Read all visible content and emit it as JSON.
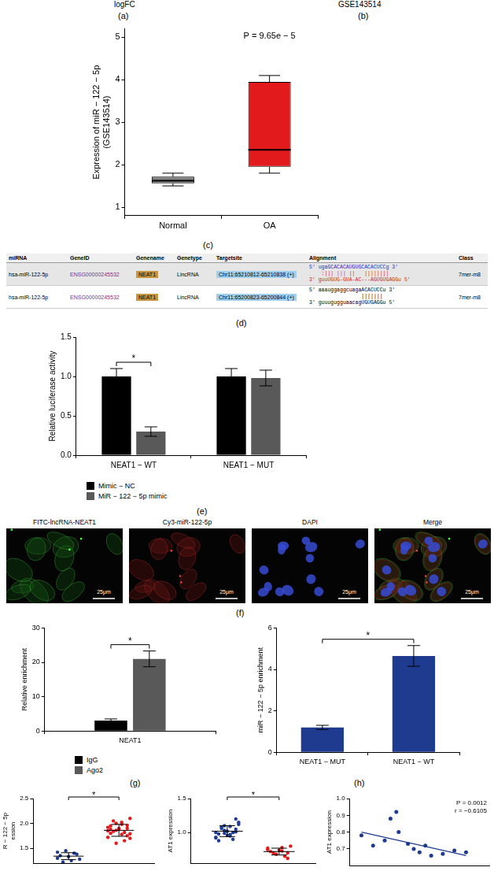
{
  "header": {
    "a": {
      "axis_label": "logFC",
      "panel_label": "(a)"
    },
    "b": {
      "title": "GSE143514",
      "panel_label": "(b)"
    }
  },
  "chart_data": [
    {
      "panel_label": "(c)",
      "type": "box",
      "y_label": [
        "Expression of miR − 122 − 5p",
        "(GSE143514)"
      ],
      "categories": [
        "Normal",
        "OA"
      ],
      "boxes": [
        {
          "min": 1.5,
          "q1": 1.56,
          "median": 1.62,
          "q3": 1.72,
          "max": 1.8
        },
        {
          "min": 1.8,
          "q1": 1.95,
          "median": 2.35,
          "q3": 3.95,
          "max": 4.1
        }
      ],
      "colors": [
        "#808080",
        "#e31a1c"
      ],
      "annotations": [
        {
          "text": "P = 9.65e − 5"
        }
      ],
      "ylim": [
        0.8,
        5.2
      ],
      "yticks": [
        1,
        2,
        3,
        4,
        5
      ],
      "grid": false
    },
    {
      "panel_label": "(e)",
      "type": "bar",
      "y_label": "Relative luciferase activity",
      "categories": [
        "NEAT1 − WT",
        "NEAT1 − MUT"
      ],
      "series": [
        {
          "name": "Mimic − NC",
          "color": "#000000",
          "values": [
            1.0,
            1.0
          ],
          "errors": [
            0.1,
            0.1
          ]
        },
        {
          "name": "MiR − 122 − 5p mimic",
          "color": "#595959",
          "values": [
            0.3,
            0.98
          ],
          "errors": [
            0.06,
            0.1
          ]
        }
      ],
      "ylim": [
        0,
        1.5
      ],
      "yticks": [
        {
          "value": 0,
          "label": "0.0"
        },
        0.5,
        {
          "value": 1,
          "label": "1.0"
        },
        1.5
      ],
      "grid": false,
      "legend": "bottom",
      "annotations": [
        {
          "text": "*",
          "category": "NEAT1 − WT"
        }
      ]
    },
    {
      "panel_label": "(g)",
      "type": "bar",
      "y_label": "Relative enrichment",
      "categories": [
        "NEAT1"
      ],
      "series": [
        {
          "name": "IgG",
          "color": "#000000",
          "values": [
            3.0
          ],
          "errors": [
            0.5
          ]
        },
        {
          "name": "Ago2",
          "color": "#595959",
          "values": [
            21.0
          ],
          "errors": [
            2.3
          ]
        }
      ],
      "ylim": [
        0,
        30
      ],
      "yticks": [
        0,
        10,
        20,
        30
      ],
      "grid": false,
      "legend": "bottom",
      "annotations": [
        {
          "text": "*",
          "category": "NEAT1"
        }
      ]
    },
    {
      "panel_label": "(h)",
      "type": "bar",
      "y_label": "miR − 122 − 5p enrichment",
      "categories": [
        "NEAT1 − MUT",
        "NEAT1 − WT"
      ],
      "values": [
        1.2,
        4.65
      ],
      "errors": [
        0.1,
        0.5
      ],
      "color": "#1f3b8f",
      "ylim": [
        0,
        6
      ],
      "yticks": [
        0,
        2,
        4,
        6
      ],
      "grid": false,
      "annotations": [
        {
          "text": "*",
          "between": [
            "NEAT1 − MUT",
            "NEAT1 − WT"
          ]
        }
      ]
    },
    {
      "type": "strip",
      "y_label": [
        "R − 122 − 5p",
        "ession"
      ],
      "series": [
        {
          "color": "#1f3b8f",
          "values": [
            1.3,
            1.38,
            1.25,
            1.45,
            1.35,
            1.28,
            1.4,
            1.33,
            1.22,
            1.42
          ],
          "mean": 1.34,
          "sd": 0.07
        },
        {
          "color": "#e31a1c",
          "values": [
            1.85,
            1.9,
            1.78,
            2.0,
            1.95,
            1.7,
            1.82,
            1.88,
            2.05,
            1.92,
            1.75,
            1.98,
            1.86,
            1.8,
            2.1,
            1.65,
            1.9,
            1.84,
            1.72,
            1.96,
            2.02,
            1.6,
            1.88,
            1.79
          ],
          "mean": 1.86,
          "sd": 0.12
        }
      ],
      "ylim": [
        1.2,
        2.5
      ],
      "yticks": [
        1.5,
        {
          "value": 2,
          "label": "2.0"
        },
        2.5
      ],
      "grid": false,
      "tick_labels": "y",
      "annotations": [
        {
          "text": "*"
        }
      ]
    },
    {
      "type": "strip",
      "y_label": "AT1 expression",
      "series": [
        {
          "color": "#1f3b8f",
          "values": [
            1.0,
            1.05,
            0.95,
            1.1,
            0.98,
            1.15,
            0.9,
            1.02,
            1.08,
            0.93,
            1.2,
            0.97,
            1.03,
            0.88,
            1.12,
            1.0,
            0.96,
            1.06,
            0.92,
            1.01,
            1.09,
            0.99
          ],
          "mean": 1.02,
          "sd": 0.08
        },
        {
          "color": "#e31a1c",
          "values": [
            0.75,
            0.7,
            0.78,
            0.68,
            0.72,
            0.8,
            0.65,
            0.74,
            0.7,
            0.77,
            0.62,
            0.73
          ],
          "mean": 0.72,
          "sd": 0.05
        }
      ],
      "ylim": [
        0.55,
        1.5
      ],
      "yticks": [
        {
          "value": 1,
          "label": "1.0"
        },
        1.5
      ],
      "grid": false,
      "tick_labels": "y",
      "annotations": [
        {
          "text": "*"
        }
      ]
    },
    {
      "type": "scatter",
      "y_label": "AT1 expression",
      "color": "#1f3b8f",
      "x": [
        1.3,
        1.4,
        1.5,
        1.55,
        1.6,
        1.62,
        1.7,
        1.75,
        1.8,
        1.85,
        1.9,
        2.0,
        2.1,
        2.2
      ],
      "y": [
        0.78,
        0.72,
        0.75,
        0.88,
        0.92,
        0.8,
        0.73,
        0.7,
        0.68,
        0.72,
        0.66,
        0.67,
        0.69,
        0.68
      ],
      "trend_line": {
        "x": [
          1.3,
          2.2
        ],
        "y": [
          0.8,
          0.66
        ]
      },
      "xlim": [
        1.2,
        2.4
      ],
      "xticks": [],
      "ylim": [
        0.6,
        1.0
      ],
      "yticks": [
        0.7,
        0.8,
        0.9,
        {
          "value": 1,
          "label": "1.0"
        }
      ],
      "grid": false,
      "tick_labels": "y",
      "annotations": [
        {
          "text": "P = 0.0012"
        },
        {
          "text": "r = −0.6105"
        }
      ]
    }
  ],
  "table": {
    "panel_label": "(d)",
    "header": [
      "miRNA",
      "GeneID",
      "Genename",
      "Genetype",
      "Targetsite",
      "Alignment",
      "Class"
    ],
    "rows": [
      [
        "hsa-miR-122-5p",
        "ENSG00000245532",
        "NEAT1",
        "LincRNA",
        "Chr11:65210812-65210838 (+)",
        {
          "target": "5' ugaGCACACAUGUGCACACUCCg 3'",
          "pairing": "    :||| ||| ||   ||||||||",
          "mirna": "3' guuUGUG-GUA-AC---AGUGUGAGGu 5'"
        },
        "7mer-m8"
      ],
      [
        "hsa-miR-122-5p",
        "ENSG00000245532",
        "NEAT1",
        "LincRNA",
        "Chr11:65200823-65200844 (+)",
        {
          "target": "5' aaauggaggcuagaACACUCCu 3'",
          "pairing": "                 |||||||",
          "mirna": "3' guuugugguaacagUGUGAGGu 5'"
        },
        "7mer-m8"
      ]
    ]
  },
  "images": {
    "panel_label": "(f)",
    "panels": [
      {
        "title": "FITC-lncRNA-NEAT1",
        "scale_bar": "25μm"
      },
      {
        "title": "Cy3-miR-122-5p",
        "scale_bar": "25μm"
      },
      {
        "title": "DAPI",
        "scale_bar": "25μm"
      },
      {
        "title": "Merge",
        "scale_bar": "25μm"
      }
    ]
  }
}
